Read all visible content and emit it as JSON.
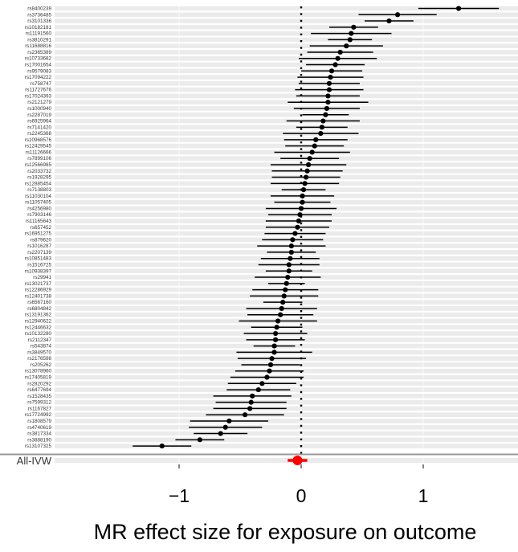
{
  "chart_data": {
    "type": "forest",
    "xlabel": "MR effect size for exposure on outcome",
    "xlim": [
      -1.95,
      1.75
    ],
    "x_ticks": [
      -1,
      0,
      1
    ],
    "x_tick_labels": [
      "−1",
      "0",
      "1"
    ],
    "reference_line": 0,
    "grid": true,
    "colors": {
      "snp": "#000000",
      "summary": "#ff0000",
      "stripe": "#ebebeb",
      "separator": "#999999"
    },
    "snps": [
      {
        "label": "rs8400239",
        "est": 1.29,
        "lo": 0.96,
        "hi": 1.62
      },
      {
        "label": "rs3736485",
        "est": 0.79,
        "lo": 0.47,
        "hi": 1.11
      },
      {
        "label": "rs3101336",
        "est": 0.72,
        "lo": 0.52,
        "hi": 0.92
      },
      {
        "label": "rs10182181",
        "est": 0.43,
        "lo": 0.23,
        "hi": 0.63
      },
      {
        "label": "rs11191560",
        "est": 0.41,
        "lo": 0.08,
        "hi": 0.74
      },
      {
        "label": "rs3810291",
        "est": 0.4,
        "lo": 0.22,
        "hi": 0.58
      },
      {
        "label": "rs11688816",
        "est": 0.37,
        "lo": 0.07,
        "hi": 0.67
      },
      {
        "label": "rs2365389",
        "est": 0.32,
        "lo": 0.05,
        "hi": 0.59
      },
      {
        "label": "rs10733682",
        "est": 0.3,
        "lo": -0.02,
        "hi": 0.62
      },
      {
        "label": "rs17001654",
        "est": 0.28,
        "lo": 0.04,
        "hi": 0.52
      },
      {
        "label": "rs9579083",
        "est": 0.25,
        "lo": 0.0,
        "hi": 0.5
      },
      {
        "label": "rs17094222",
        "est": 0.24,
        "lo": -0.03,
        "hi": 0.51
      },
      {
        "label": "rs758747",
        "est": 0.23,
        "lo": -0.02,
        "hi": 0.48
      },
      {
        "label": "rs11727676",
        "est": 0.23,
        "lo": -0.05,
        "hi": 0.51
      },
      {
        "label": "rs17024393",
        "est": 0.22,
        "lo": -0.04,
        "hi": 0.48
      },
      {
        "label": "rs2121279",
        "est": 0.22,
        "lo": -0.11,
        "hi": 0.55
      },
      {
        "label": "rs1000940",
        "est": 0.21,
        "lo": -0.06,
        "hi": 0.48
      },
      {
        "label": "rs2287019",
        "est": 0.2,
        "lo": 0.01,
        "hi": 0.39
      },
      {
        "label": "rs6925964",
        "est": 0.18,
        "lo": -0.12,
        "hi": 0.48
      },
      {
        "label": "rs7141420",
        "est": 0.17,
        "lo": -0.04,
        "hi": 0.38
      },
      {
        "label": "rs2245368",
        "est": 0.16,
        "lo": -0.15,
        "hi": 0.47
      },
      {
        "label": "rs10968576",
        "est": 0.12,
        "lo": -0.14,
        "hi": 0.38
      },
      {
        "label": "rs12429545",
        "est": 0.11,
        "lo": -0.13,
        "hi": 0.35
      },
      {
        "label": "rs11126666",
        "est": 0.09,
        "lo": -0.22,
        "hi": 0.4
      },
      {
        "label": "rs7899106",
        "est": 0.07,
        "lo": -0.17,
        "hi": 0.31
      },
      {
        "label": "rs12566985",
        "est": 0.06,
        "lo": -0.25,
        "hi": 0.37
      },
      {
        "label": "rs2033732",
        "est": 0.05,
        "lo": -0.24,
        "hi": 0.34
      },
      {
        "label": "rs1928295",
        "est": 0.04,
        "lo": -0.24,
        "hi": 0.32
      },
      {
        "label": "rs12885454",
        "est": 0.03,
        "lo": -0.25,
        "hi": 0.31
      },
      {
        "label": "rs7138803",
        "est": 0.02,
        "lo": -0.16,
        "hi": 0.2
      },
      {
        "label": "rs11030104",
        "est": 0.01,
        "lo": -0.25,
        "hi": 0.27
      },
      {
        "label": "rs11057405",
        "est": 0.01,
        "lo": -0.22,
        "hi": 0.24
      },
      {
        "label": "rs4256980",
        "est": 0.0,
        "lo": -0.29,
        "hi": 0.29
      },
      {
        "label": "rs7903146",
        "est": -0.01,
        "lo": -0.27,
        "hi": 0.25
      },
      {
        "label": "rs11165643",
        "est": -0.02,
        "lo": -0.29,
        "hi": 0.25
      },
      {
        "label": "rs657452",
        "est": -0.03,
        "lo": -0.29,
        "hi": 0.23
      },
      {
        "label": "rs16951275",
        "est": -0.05,
        "lo": -0.3,
        "hi": 0.2
      },
      {
        "label": "rs879620",
        "est": -0.07,
        "lo": -0.32,
        "hi": 0.18
      },
      {
        "label": "rs1016287",
        "est": -0.08,
        "lo": -0.36,
        "hi": 0.2
      },
      {
        "label": "rs2207139",
        "est": -0.08,
        "lo": -0.28,
        "hi": 0.12
      },
      {
        "label": "rs10851483",
        "est": -0.09,
        "lo": -0.33,
        "hi": 0.15
      },
      {
        "label": "rs1516725",
        "est": -0.1,
        "lo": -0.35,
        "hi": 0.15
      },
      {
        "label": "rs10938397",
        "est": -0.1,
        "lo": -0.29,
        "hi": 0.09
      },
      {
        "label": "rs29941",
        "est": -0.11,
        "lo": -0.38,
        "hi": 0.16
      },
      {
        "label": "rs13021737",
        "est": -0.12,
        "lo": -0.27,
        "hi": 0.03
      },
      {
        "label": "rs12286929",
        "est": -0.13,
        "lo": -0.4,
        "hi": 0.14
      },
      {
        "label": "rs12401738",
        "est": -0.14,
        "lo": -0.42,
        "hi": 0.14
      },
      {
        "label": "rs6567160",
        "est": -0.15,
        "lo": -0.31,
        "hi": 0.01
      },
      {
        "label": "rs6804842",
        "est": -0.16,
        "lo": -0.45,
        "hi": 0.13
      },
      {
        "label": "rs13191362",
        "est": -0.17,
        "lo": -0.44,
        "hi": 0.1
      },
      {
        "label": "rs12940622",
        "est": -0.19,
        "lo": -0.51,
        "hi": 0.13
      },
      {
        "label": "rs12446632",
        "est": -0.2,
        "lo": -0.41,
        "hi": 0.01
      },
      {
        "label": "rs10132280",
        "est": -0.21,
        "lo": -0.47,
        "hi": 0.05
      },
      {
        "label": "rs2112347",
        "est": -0.21,
        "lo": -0.45,
        "hi": 0.03
      },
      {
        "label": "rs543874",
        "est": -0.22,
        "lo": -0.39,
        "hi": -0.05
      },
      {
        "label": "rs3849570",
        "est": -0.22,
        "lo": -0.53,
        "hi": 0.09
      },
      {
        "label": "rs2176598",
        "est": -0.24,
        "lo": -0.52,
        "hi": 0.04
      },
      {
        "label": "rs205262",
        "est": -0.25,
        "lo": -0.49,
        "hi": -0.01
      },
      {
        "label": "rs13078960",
        "est": -0.26,
        "lo": -0.54,
        "hi": 0.02
      },
      {
        "label": "rs17405819",
        "est": -0.28,
        "lo": -0.58,
        "hi": 0.02
      },
      {
        "label": "rs2820292",
        "est": -0.32,
        "lo": -0.6,
        "hi": -0.04
      },
      {
        "label": "rs6477694",
        "est": -0.35,
        "lo": -0.61,
        "hi": -0.09
      },
      {
        "label": "rs1528435",
        "est": -0.4,
        "lo": -0.72,
        "hi": -0.08
      },
      {
        "label": "rs7599312",
        "est": -0.41,
        "lo": -0.7,
        "hi": -0.12
      },
      {
        "label": "rs1167827",
        "est": -0.42,
        "lo": -0.72,
        "hi": -0.12
      },
      {
        "label": "rs17724992",
        "est": -0.46,
        "lo": -0.78,
        "hi": -0.14
      },
      {
        "label": "rs1808579",
        "est": -0.59,
        "lo": -0.91,
        "hi": -0.27
      },
      {
        "label": "rs4740619",
        "est": -0.62,
        "lo": -0.92,
        "hi": -0.32
      },
      {
        "label": "rs3817334",
        "est": -0.66,
        "lo": -0.88,
        "hi": -0.44
      },
      {
        "label": "rs3888190",
        "est": -0.83,
        "lo": -1.03,
        "hi": -0.63
      },
      {
        "label": "rs13107325",
        "est": -1.14,
        "lo": -1.38,
        "hi": -0.9
      }
    ],
    "summary": {
      "label": "All-IVW",
      "est": -0.03,
      "lo": -0.11,
      "hi": 0.05
    }
  }
}
